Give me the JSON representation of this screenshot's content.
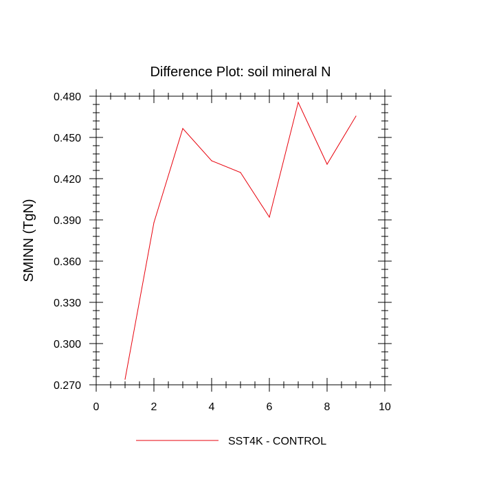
{
  "chart_data": {
    "type": "line",
    "title": "Difference Plot: soil mineral N",
    "xlabel": "",
    "ylabel": "SMINN  (TgN)",
    "xlim": [
      0,
      10
    ],
    "ylim": [
      0.27,
      0.48
    ],
    "x_ticks": [
      0,
      2,
      4,
      6,
      8,
      10
    ],
    "x_tick_labels": [
      "0",
      "2",
      "4",
      "6",
      "8",
      "10"
    ],
    "y_ticks": [
      0.27,
      0.3,
      0.33,
      0.36,
      0.39,
      0.42,
      0.45,
      0.48
    ],
    "y_tick_labels": [
      "0.270",
      "0.300",
      "0.330",
      "0.360",
      "0.390",
      "0.420",
      "0.450",
      "0.480"
    ],
    "grid": false,
    "legend_position": "bottom",
    "series": [
      {
        "name": "SST4K - CONTROL",
        "color": "#e8000b",
        "x": [
          1,
          2,
          3,
          4,
          5,
          6,
          7,
          8,
          9
        ],
        "y": [
          0.274,
          0.388,
          0.4565,
          0.433,
          0.4245,
          0.392,
          0.4755,
          0.4305,
          0.4655
        ]
      }
    ]
  }
}
